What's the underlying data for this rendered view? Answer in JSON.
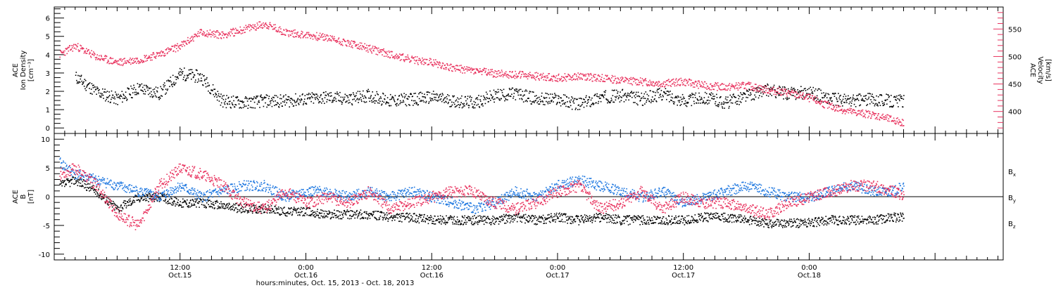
{
  "chart_data": [
    {
      "type": "scatter",
      "panel": "top",
      "ylabel_lines": [
        "ACE",
        "Ion Density",
        "[cm⁻³]"
      ],
      "ylabel_right_lines": [
        "ACE",
        "Velocity",
        "[km/s]"
      ],
      "ylim": [
        -0.3,
        6.6
      ],
      "yticks": [
        0,
        1,
        2,
        3,
        4,
        5,
        6
      ],
      "ylim_right": [
        360,
        590
      ],
      "yticks_right": [
        400,
        450,
        500,
        550
      ],
      "series": [
        {
          "axis": "left",
          "color": "#000000",
          "x": [
            2,
            4,
            6,
            8,
            10,
            12,
            14,
            16,
            18,
            20,
            22,
            24,
            26,
            28,
            30,
            32,
            34,
            36,
            38,
            40,
            42,
            44,
            46,
            48,
            50,
            52,
            54,
            56,
            58,
            60,
            62,
            64,
            66,
            68,
            70,
            72,
            74,
            76,
            78,
            80,
            81
          ],
          "y": [
            2.8,
            2.0,
            1.6,
            2.2,
            1.9,
            3.0,
            2.8,
            1.5,
            1.4,
            1.5,
            1.5,
            1.6,
            1.7,
            1.6,
            1.8,
            1.5,
            1.6,
            1.7,
            1.5,
            1.4,
            1.8,
            1.9,
            1.6,
            1.6,
            1.3,
            1.7,
            1.8,
            1.6,
            1.9,
            1.5,
            1.7,
            1.4,
            1.8,
            2.1,
            1.9,
            2.0,
            1.6,
            1.5,
            1.6,
            1.5,
            1.5
          ]
        },
        {
          "axis": "right",
          "color": "#e8325e",
          "x": [
            0.5,
            2,
            4,
            6,
            8,
            10,
            12,
            14,
            16,
            18,
            20,
            22,
            24,
            26,
            28,
            30,
            32,
            34,
            36,
            38,
            40,
            42,
            44,
            46,
            48,
            50,
            52,
            54,
            56,
            58,
            60,
            62,
            64,
            66,
            68,
            70,
            72,
            74,
            76,
            78,
            80,
            81
          ],
          "y": [
            505,
            520,
            500,
            490,
            495,
            505,
            520,
            545,
            540,
            550,
            560,
            545,
            540,
            535,
            525,
            515,
            505,
            495,
            490,
            480,
            475,
            470,
            468,
            465,
            462,
            465,
            462,
            458,
            455,
            452,
            455,
            448,
            445,
            448,
            440,
            435,
            425,
            410,
            400,
            395,
            385,
            380
          ]
        }
      ]
    },
    {
      "type": "scatter",
      "panel": "bottom",
      "ylabel_lines": [
        "ACE",
        "B",
        "[nT]"
      ],
      "ylim": [
        -11,
        11
      ],
      "yticks": [
        -10,
        -5,
        0,
        5,
        10
      ],
      "legend_position": "right",
      "series": [
        {
          "name": "Bx",
          "color": "#000000",
          "x": [
            0.5,
            2,
            4,
            6,
            8,
            10,
            12,
            14,
            16,
            18,
            20,
            22,
            24,
            26,
            28,
            30,
            32,
            34,
            36,
            38,
            40,
            42,
            44,
            46,
            48,
            50,
            52,
            54,
            56,
            58,
            60,
            62,
            64,
            66,
            68,
            70,
            72,
            74,
            76,
            78,
            80,
            81
          ],
          "y": [
            2,
            3,
            1,
            -2,
            0,
            0,
            -1,
            -1,
            -1.5,
            -2,
            -2,
            -2.5,
            -2.5,
            -3,
            -3,
            -3,
            -3.5,
            -3.5,
            -4,
            -4,
            -4,
            -4,
            -3.5,
            -4,
            -3.5,
            -4,
            -3.5,
            -4,
            -4,
            -4,
            -4,
            -3.5,
            -3.5,
            -4,
            -4.5,
            -4.5,
            -4.5,
            -4,
            -4,
            -4,
            -3.5,
            -3.5
          ]
        },
        {
          "name": "By",
          "color": "#1f78e0",
          "x": [
            0.5,
            2,
            4,
            6,
            8,
            10,
            12,
            14,
            16,
            18,
            20,
            22,
            24,
            26,
            28,
            30,
            32,
            34,
            36,
            38,
            40,
            42,
            44,
            46,
            48,
            50,
            52,
            54,
            56,
            58,
            60,
            62,
            64,
            66,
            68,
            70,
            72,
            74,
            76,
            78,
            80,
            81
          ],
          "y": [
            6,
            4,
            3,
            2,
            1,
            0,
            2,
            0,
            1,
            2,
            2,
            0,
            1,
            1,
            0,
            1,
            0,
            1,
            0,
            -1,
            -2,
            -1,
            1,
            0,
            2,
            3,
            2,
            1,
            0,
            1,
            -1,
            0,
            1,
            2,
            1,
            0,
            0,
            1,
            2,
            1,
            1,
            2
          ]
        },
        {
          "name": "Bz",
          "color": "#e8325e",
          "x": [
            0.5,
            2,
            4,
            6,
            8,
            10,
            12,
            14,
            16,
            18,
            20,
            22,
            24,
            26,
            28,
            30,
            32,
            34,
            36,
            38,
            40,
            42,
            44,
            46,
            48,
            50,
            52,
            54,
            56,
            58,
            60,
            62,
            64,
            66,
            68,
            70,
            72,
            74,
            76,
            78,
            80,
            81
          ],
          "y": [
            4,
            5,
            2,
            -3,
            -5,
            2,
            5,
            4,
            2,
            -1,
            -2,
            1,
            -1,
            0,
            -1,
            1,
            -2,
            -1,
            0,
            1,
            1,
            -1,
            -2,
            -1,
            1,
            2,
            -2,
            -1,
            1,
            -2,
            0,
            -1,
            -1,
            -2,
            -3,
            -1,
            0,
            1,
            2,
            2,
            1,
            0
          ]
        }
      ]
    }
  ],
  "xaxis": {
    "xlim": [
      0,
      90.5
    ],
    "major_ticks": [
      12,
      24,
      36,
      48,
      60,
      72,
      84
    ],
    "tick_labels": [
      {
        "hour": 12,
        "time": "12:00",
        "date": "Oct.15"
      },
      {
        "hour": 24,
        "time": "0:00",
        "date": "Oct.16"
      },
      {
        "hour": 36,
        "time": "12:00",
        "date": "Oct.16"
      },
      {
        "hour": 48,
        "time": "0:00",
        "date": "Oct.17"
      },
      {
        "hour": 60,
        "time": "12:00",
        "date": "Oct.17"
      },
      {
        "hour": 72,
        "time": "0:00",
        "date": "Oct.18"
      }
    ],
    "title": "hours:minutes, Oct. 15, 2013 - Oct. 18, 2013"
  },
  "legend": [
    {
      "base": "B",
      "sub": "x",
      "color": "#000000"
    },
    {
      "base": "B",
      "sub": "y",
      "color": "#1f78e0"
    },
    {
      "base": "B",
      "sub": "z",
      "color": "#e8325e"
    }
  ],
  "colors": {
    "density": "#000000",
    "velocity": "#e8325e",
    "bx": "#000000",
    "by": "#1f78e0",
    "bz": "#e8325e"
  }
}
